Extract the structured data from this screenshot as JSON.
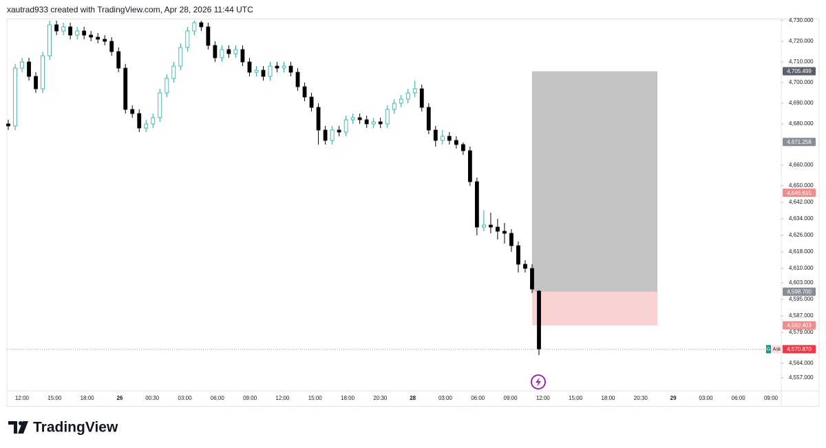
{
  "header": {
    "text": "xautrad933 created with TradingView.com, Apr 28, 2026 11:44 UTC"
  },
  "footer": {
    "logo_text": "TradingView"
  },
  "chart_data": {
    "type": "candlestick",
    "time_labels": [
      "12:00",
      "15:00",
      "18:00",
      "26",
      "00:30",
      "03:00",
      "06:00",
      "09:00",
      "12:00",
      "15:00",
      "18:00",
      "20:30",
      "28",
      "03:00",
      "06:00",
      "09:00",
      "12:00",
      "15:00",
      "18:00",
      "20:30",
      "29",
      "03:00",
      "06:00",
      "09:00"
    ],
    "open": [
      4680,
      4679,
      4707,
      4710,
      4703,
      4697,
      4713,
      4728,
      4725,
      4727,
      4723,
      4725,
      4723,
      4722,
      4721,
      4720,
      4715,
      4707,
      4687,
      4685,
      4678,
      4680,
      4683,
      4695,
      4702,
      4708,
      4717,
      4725,
      4729,
      4727,
      4718,
      4712,
      4716,
      4714,
      4716,
      4710,
      4705,
      4706,
      4703,
      4708,
      4707,
      4708,
      4705,
      4698,
      4693,
      4688,
      4677,
      4672,
      4677,
      4676,
      4682,
      4683,
      4682,
      4680,
      4681,
      4680,
      4687,
      4690,
      4692,
      4695,
      4697,
      4688,
      4677,
      4672,
      4674,
      4672,
      4670,
      4667,
      4652,
      4630,
      4631,
      4630,
      4628,
      4627,
      4621,
      4612,
      4610,
      4599
    ],
    "high": [
      4682,
      4709,
      4712,
      4712,
      4705,
      4715,
      4730,
      4730,
      4729,
      4729,
      4727,
      4727,
      4725,
      4724,
      4723,
      4722,
      4717,
      4709,
      4689,
      4687,
      4682,
      4685,
      4697,
      4704,
      4710,
      4719,
      4727,
      4730,
      4730,
      4729,
      4720,
      4718,
      4718,
      4718,
      4718,
      4712,
      4708,
      4708,
      4710,
      4710,
      4710,
      4710,
      4707,
      4700,
      4695,
      4690,
      4679,
      4679,
      4679,
      4684,
      4685,
      4685,
      4684,
      4683,
      4683,
      4689,
      4692,
      4694,
      4697,
      4701,
      4699,
      4690,
      4679,
      4677,
      4676,
      4674,
      4671,
      4669,
      4654,
      4638,
      4637,
      4634,
      4632,
      4629,
      4623,
      4614,
      4612,
      4599.5
    ],
    "low": [
      4677,
      4677,
      4705,
      4701,
      4695,
      4695,
      4711,
      4723,
      4723,
      4721,
      4721,
      4721,
      4720,
      4719,
      4718,
      4713,
      4705,
      4685,
      4683,
      4676,
      4676,
      4678,
      4681,
      4693,
      4700,
      4706,
      4715,
      4723,
      4725,
      4716,
      4710,
      4710,
      4712,
      4712,
      4708,
      4703,
      4703,
      4701,
      4701,
      4705,
      4705,
      4703,
      4696,
      4691,
      4686,
      4670,
      4670,
      4670,
      4674,
      4674,
      4680,
      4680,
      4678,
      4678,
      4678,
      4678,
      4685,
      4688,
      4690,
      4693,
      4686,
      4675,
      4669,
      4670,
      4670,
      4668,
      4665,
      4650,
      4626,
      4628,
      4627,
      4624,
      4622,
      4618,
      4608,
      4608,
      4598,
      4568
    ],
    "close": [
      4679,
      4707,
      4710,
      4703,
      4697,
      4713,
      4728,
      4725,
      4727,
      4723,
      4725,
      4723,
      4722,
      4721,
      4720,
      4715,
      4707,
      4687,
      4685,
      4678,
      4680,
      4683,
      4695,
      4702,
      4708,
      4717,
      4725,
      4729,
      4727,
      4718,
      4712,
      4716,
      4714,
      4716,
      4710,
      4705,
      4706,
      4703,
      4708,
      4707,
      4708,
      4705,
      4698,
      4693,
      4688,
      4677,
      4672,
      4677,
      4676,
      4682,
      4683,
      4682,
      4680,
      4681,
      4680,
      4687,
      4690,
      4692,
      4695,
      4697,
      4688,
      4677,
      4672,
      4674,
      4672,
      4670,
      4667,
      4652,
      4630,
      4631,
      4630,
      4628,
      4627,
      4621,
      4612,
      4610,
      4600,
      4570.9
    ],
    "up_color": "#26a69a",
    "down_color": "#000000",
    "ylim": [
      4550.67,
      4730.67
    ],
    "yticks": [
      {
        "value": 4730,
        "label": "4,730.000"
      },
      {
        "value": 4720,
        "label": "4,720.000"
      },
      {
        "value": 4710,
        "label": "4,710.000"
      },
      {
        "value": 4700,
        "label": "4,700.000"
      },
      {
        "value": 4690,
        "label": "4,690.000"
      },
      {
        "value": 4680,
        "label": "4,680.000"
      },
      {
        "value": 4660,
        "label": "4,660.000"
      },
      {
        "value": 4650,
        "label": "4,650.000"
      },
      {
        "value": 4642,
        "label": "4,642.000"
      },
      {
        "value": 4634,
        "label": "4,634.000"
      },
      {
        "value": 4626,
        "label": "4,626.000"
      },
      {
        "value": 4618,
        "label": "4,618.000"
      },
      {
        "value": 4610,
        "label": "4,610.000"
      },
      {
        "value": 4603,
        "label": "4,603.000"
      },
      {
        "value": 4595,
        "label": "4,595.000"
      },
      {
        "value": 4587,
        "label": "4,587.000"
      },
      {
        "value": 4579,
        "label": "4,579.000"
      },
      {
        "value": 4564,
        "label": "4,564.000"
      },
      {
        "value": 4557,
        "label": "4,557.000"
      }
    ],
    "grid": false,
    "price_labels": [
      {
        "value": 4705.499,
        "label": "4,705.499",
        "color": "#5d606b"
      },
      {
        "value": 4671.258,
        "label": "4,671.258",
        "color": "#8a8d96"
      },
      {
        "value": 4646.615,
        "label": "4,646.615",
        "color": "#f08c8c"
      },
      {
        "value": 4598.7,
        "label": "4,598.700",
        "color": "#8a8d96"
      },
      {
        "value": 4582.403,
        "label": "4,582.403",
        "color": "#f08c8c"
      },
      {
        "value": 4570.87,
        "label": "4,570.870",
        "color": "#f23645",
        "tag": "Ask",
        "badge": "G"
      }
    ]
  }
}
